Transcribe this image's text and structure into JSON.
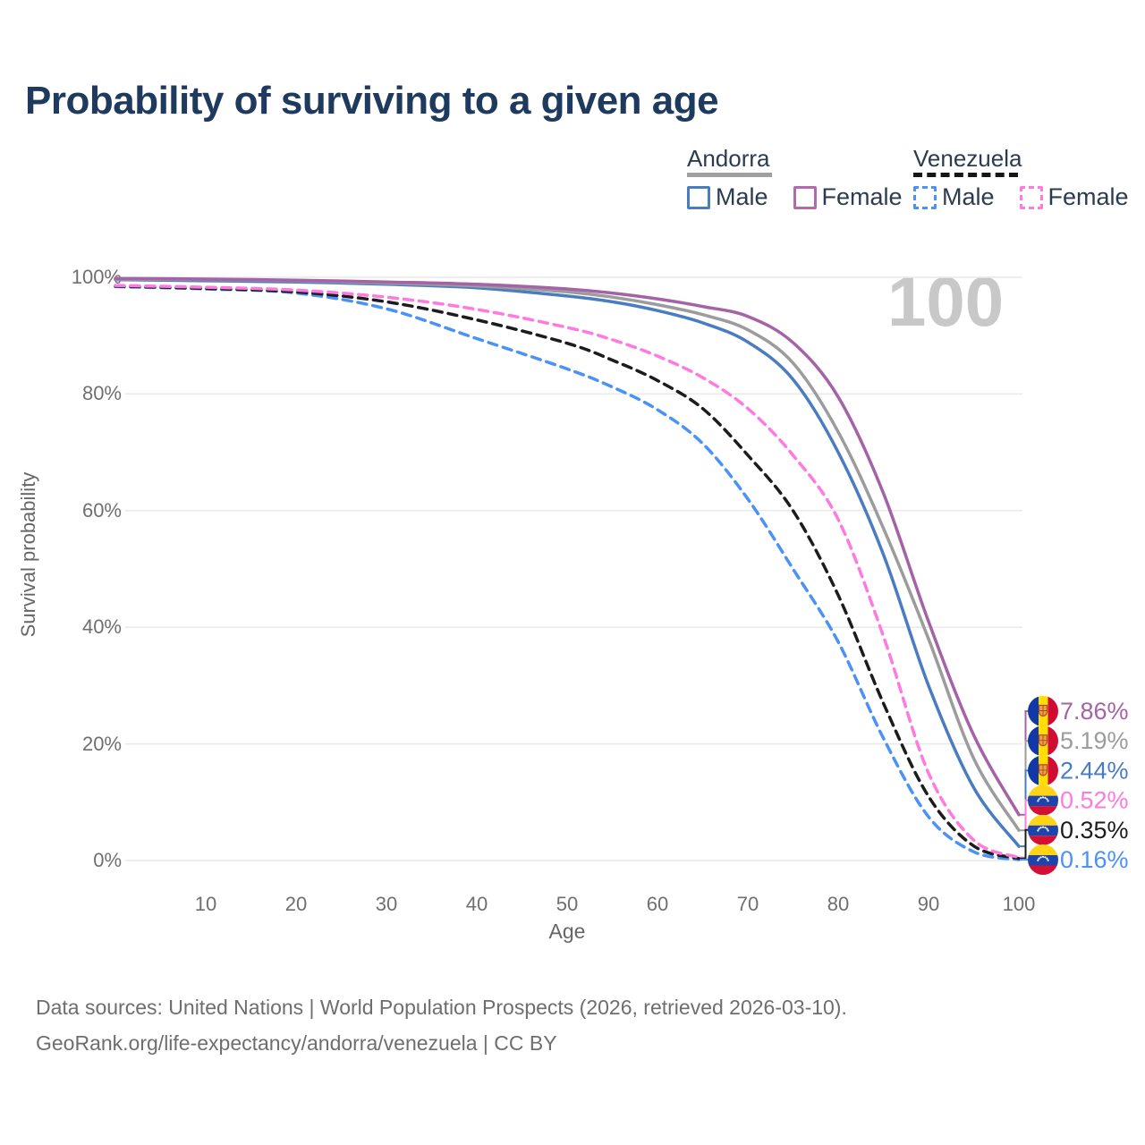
{
  "title": "Probability of surviving to a given age",
  "watermark": "100",
  "legend": {
    "groups": [
      {
        "country": "Andorra",
        "line_style": "solid",
        "line_color": "#a0a0a0",
        "items": [
          {
            "label": "Male",
            "color": "#4a7cc1",
            "dash": false
          },
          {
            "label": "Female",
            "color": "#b269ae",
            "dash": false
          }
        ]
      },
      {
        "country": "Venezuela",
        "line_style": "dashed",
        "line_color": "#161616",
        "items": [
          {
            "label": "Male",
            "color": "#4b92f7",
            "dash": true
          },
          {
            "label": "Female",
            "color": "#ff7ade",
            "dash": true
          }
        ]
      }
    ]
  },
  "chart_data": {
    "type": "line",
    "title": "Probability of surviving to a given age",
    "xlabel": "Age",
    "ylabel": "Survival probability",
    "xlim": [
      0,
      100
    ],
    "ylim": [
      0,
      100
    ],
    "x_ticks": [
      10,
      20,
      30,
      40,
      50,
      60,
      70,
      80,
      90,
      100
    ],
    "y_tick_values": [
      0,
      20,
      40,
      60,
      80,
      100
    ],
    "y_tick_labels": [
      "0%",
      "20%",
      "40%",
      "60%",
      "80%",
      "100%"
    ],
    "grid": "horizontal",
    "legend_position": "top-right",
    "series": [
      {
        "name": "Andorra Female",
        "country": "andorra",
        "color": "#a463a6",
        "dash": false,
        "end_label": "7.86%",
        "points": [
          [
            0,
            99.8
          ],
          [
            10,
            99.7
          ],
          [
            20,
            99.5
          ],
          [
            30,
            99.2
          ],
          [
            40,
            98.8
          ],
          [
            50,
            98.0
          ],
          [
            55,
            97.3
          ],
          [
            60,
            96.3
          ],
          [
            65,
            95.0
          ],
          [
            70,
            93.3
          ],
          [
            75,
            88.8
          ],
          [
            80,
            79.5
          ],
          [
            85,
            63.0
          ],
          [
            90,
            41.0
          ],
          [
            95,
            21.5
          ],
          [
            100,
            7.86
          ]
        ]
      },
      {
        "name": "Andorra Both sexes",
        "country": "andorra",
        "color": "#9c9c9c",
        "dash": false,
        "end_label": "5.19%",
        "points": [
          [
            0,
            99.7
          ],
          [
            10,
            99.6
          ],
          [
            20,
            99.4
          ],
          [
            30,
            99.0
          ],
          [
            40,
            98.5
          ],
          [
            50,
            97.5
          ],
          [
            55,
            96.6
          ],
          [
            60,
            95.3
          ],
          [
            65,
            93.6
          ],
          [
            70,
            91.0
          ],
          [
            75,
            85.3
          ],
          [
            80,
            73.5
          ],
          [
            85,
            57.0
          ],
          [
            90,
            38.0
          ],
          [
            95,
            17.5
          ],
          [
            100,
            5.19
          ]
        ]
      },
      {
        "name": "Andorra Male",
        "country": "andorra",
        "color": "#4a7cc1",
        "dash": false,
        "end_label": "2.44%",
        "points": [
          [
            0,
            99.6
          ],
          [
            10,
            99.4
          ],
          [
            20,
            99.2
          ],
          [
            30,
            98.8
          ],
          [
            40,
            98.2
          ],
          [
            50,
            96.8
          ],
          [
            55,
            95.8
          ],
          [
            60,
            94.3
          ],
          [
            65,
            92.2
          ],
          [
            70,
            88.9
          ],
          [
            75,
            82.5
          ],
          [
            80,
            70.0
          ],
          [
            85,
            52.5
          ],
          [
            90,
            30.0
          ],
          [
            95,
            12.5
          ],
          [
            100,
            2.44
          ]
        ]
      },
      {
        "name": "Venezuela Female",
        "country": "venezuela",
        "color": "#ff7ade",
        "dash": true,
        "end_label": "0.52%",
        "points": [
          [
            0,
            98.6
          ],
          [
            10,
            98.3
          ],
          [
            20,
            97.8
          ],
          [
            30,
            96.6
          ],
          [
            40,
            94.5
          ],
          [
            50,
            91.4
          ],
          [
            55,
            89.3
          ],
          [
            60,
            86.5
          ],
          [
            65,
            82.8
          ],
          [
            70,
            77.5
          ],
          [
            75,
            69.5
          ],
          [
            80,
            58.5
          ],
          [
            85,
            38.5
          ],
          [
            90,
            15.0
          ],
          [
            95,
            3.5
          ],
          [
            100,
            0.52
          ]
        ]
      },
      {
        "name": "Venezuela Both sexes",
        "country": "venezuela",
        "color": "#1c1c1c",
        "dash": true,
        "end_label": "0.35%",
        "points": [
          [
            0,
            98.5
          ],
          [
            10,
            98.1
          ],
          [
            20,
            97.5
          ],
          [
            30,
            95.8
          ],
          [
            40,
            92.7
          ],
          [
            50,
            88.7
          ],
          [
            55,
            85.8
          ],
          [
            60,
            82.3
          ],
          [
            65,
            77.5
          ],
          [
            70,
            69.5
          ],
          [
            75,
            60.0
          ],
          [
            80,
            45.5
          ],
          [
            85,
            27.0
          ],
          [
            90,
            11.0
          ],
          [
            95,
            2.5
          ],
          [
            100,
            0.35
          ]
        ]
      },
      {
        "name": "Venezuela Male",
        "country": "venezuela",
        "color": "#4b92f7",
        "dash": true,
        "end_label": "0.16%",
        "points": [
          [
            0,
            98.4
          ],
          [
            10,
            98.0
          ],
          [
            20,
            97.3
          ],
          [
            30,
            94.6
          ],
          [
            40,
            89.5
          ],
          [
            50,
            84.3
          ],
          [
            55,
            81.2
          ],
          [
            60,
            77.3
          ],
          [
            65,
            71.5
          ],
          [
            70,
            62.0
          ],
          [
            75,
            50.0
          ],
          [
            80,
            37.5
          ],
          [
            85,
            21.0
          ],
          [
            90,
            7.5
          ],
          [
            95,
            1.5
          ],
          [
            100,
            0.16
          ]
        ]
      }
    ]
  },
  "footer": {
    "line1": "Data sources: United Nations | World Population Prospects (2026, retrieved 2026-03-10).",
    "line2": "GeoRank.org/life-expectancy/andorra/venezuela | CC BY"
  }
}
